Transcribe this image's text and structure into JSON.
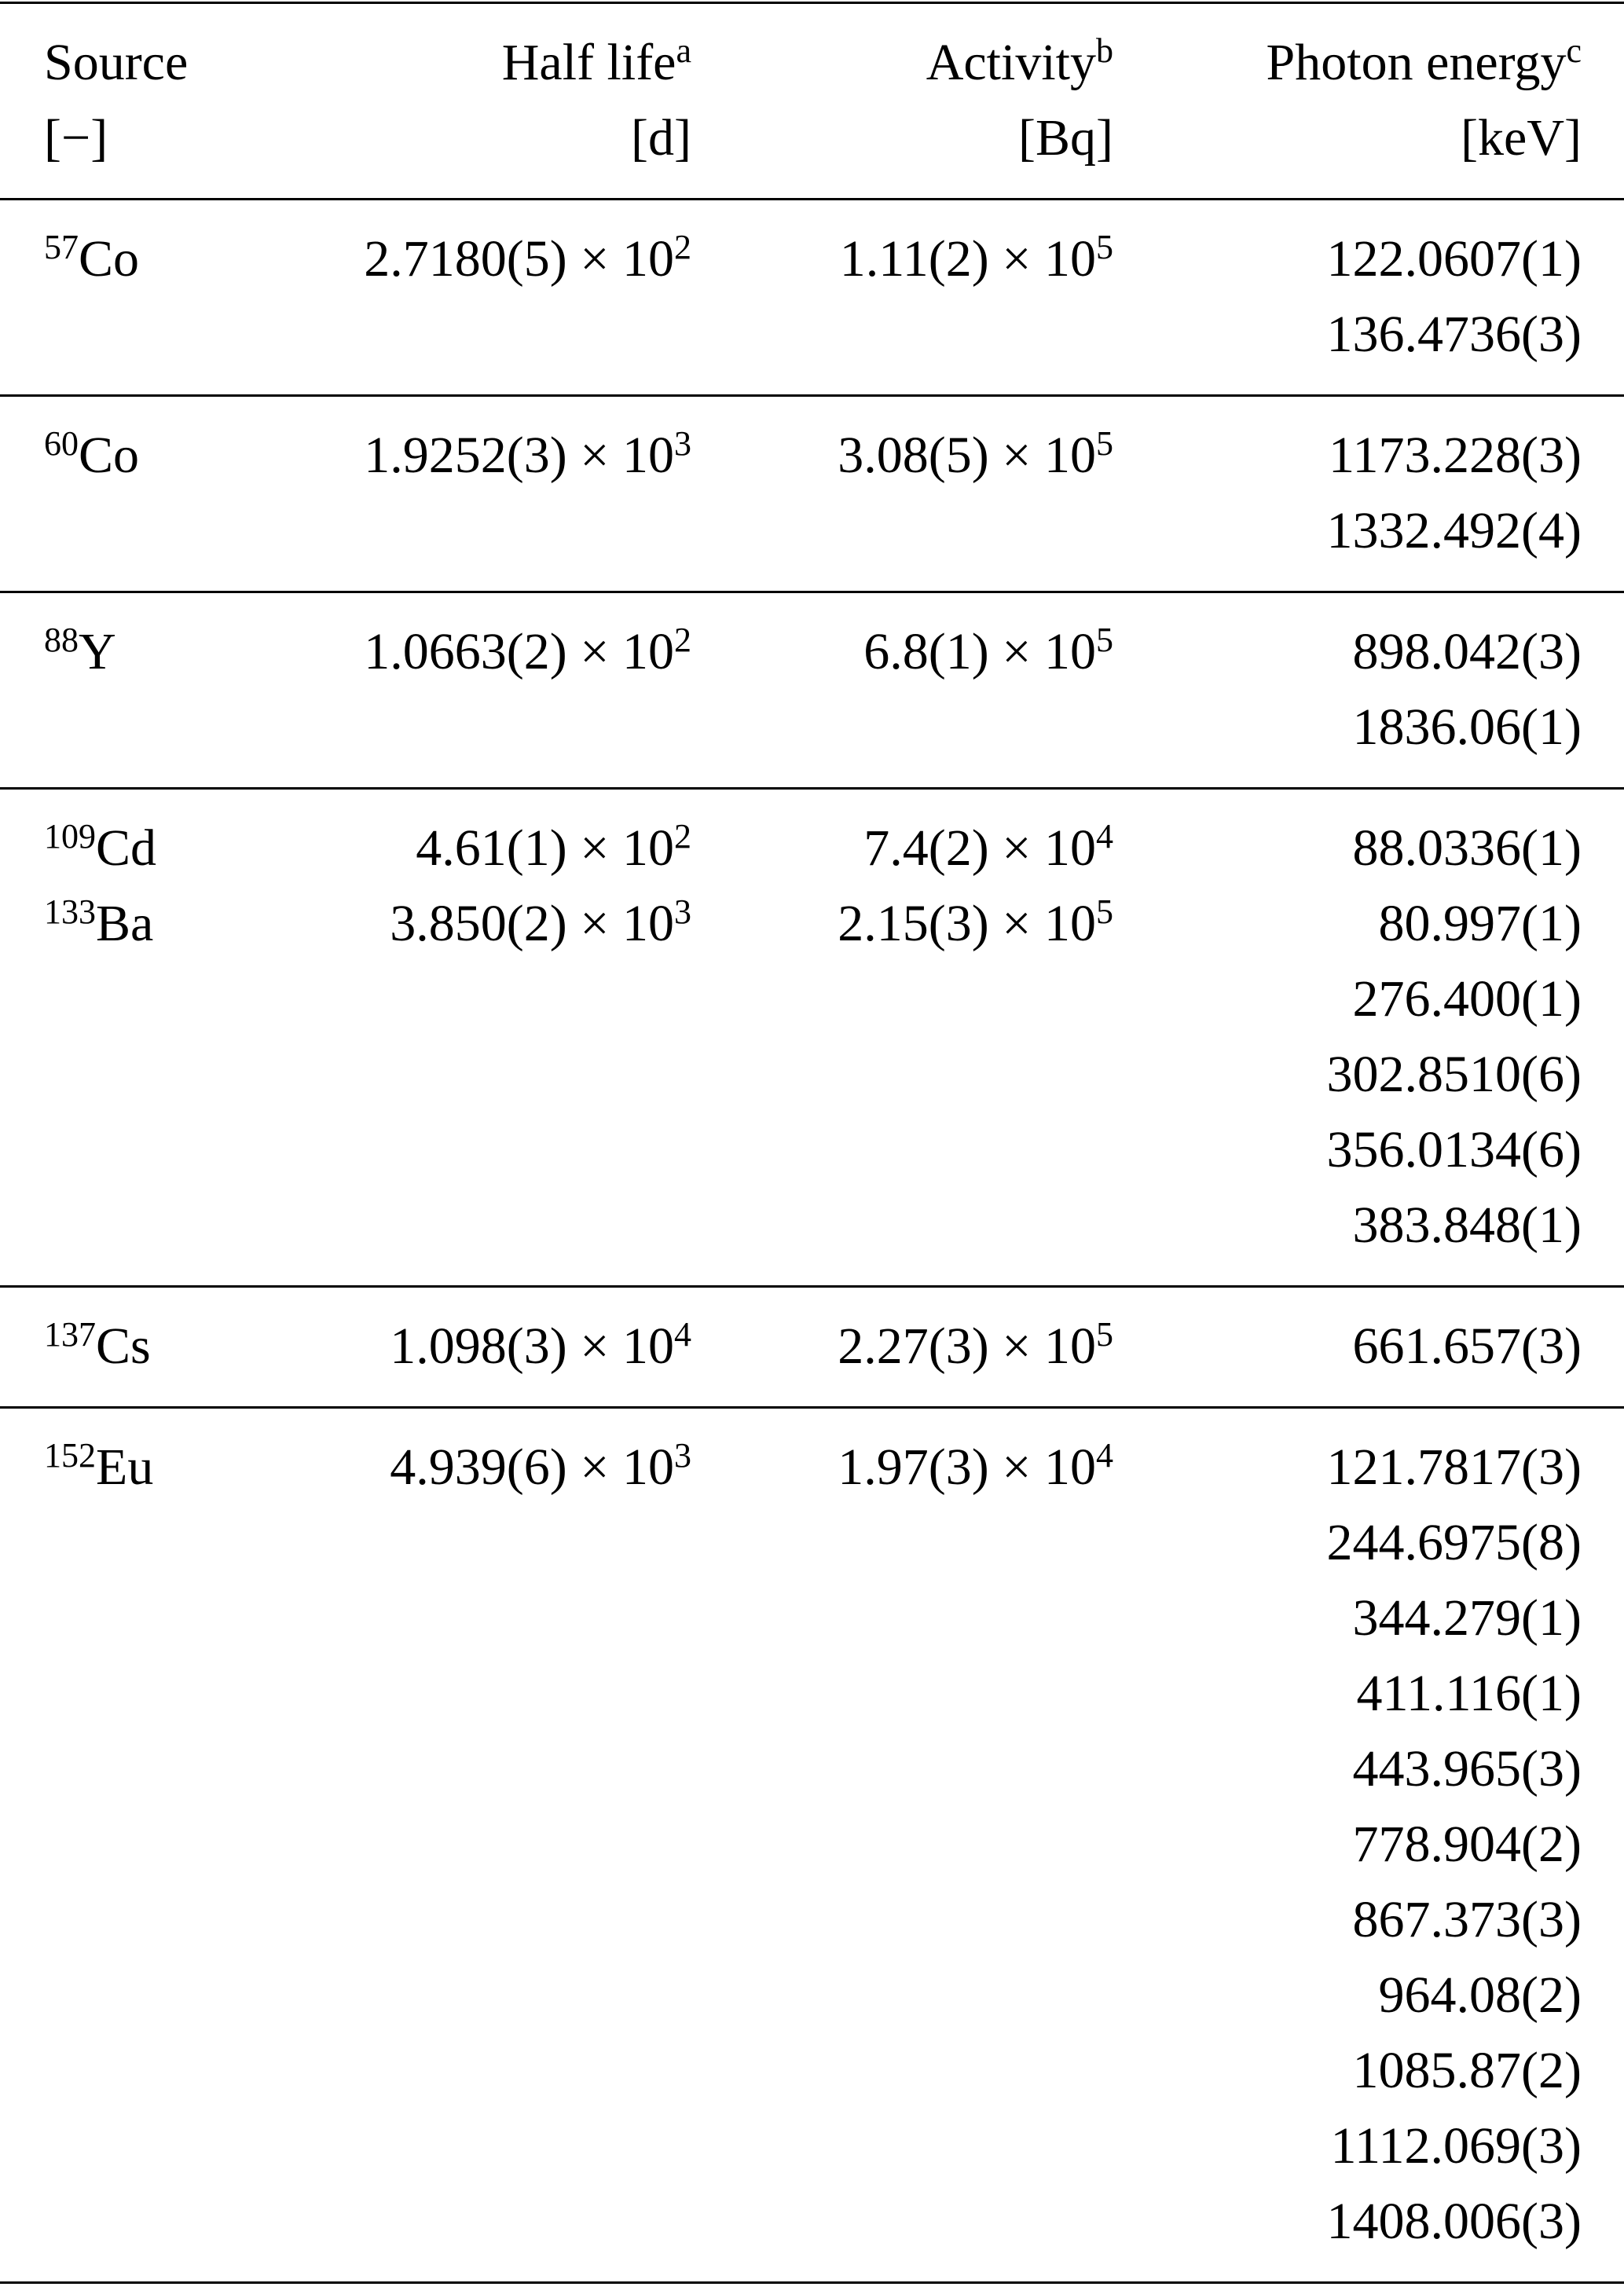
{
  "header": {
    "source": {
      "label": "Source",
      "unit": "[−]"
    },
    "half_life": {
      "label": "Half life",
      "note": "a",
      "unit": "[d]"
    },
    "activity": {
      "label": "Activity",
      "note": "b",
      "unit": "[Bq]"
    },
    "photon_energy": {
      "label": "Photon energy",
      "note": "c",
      "unit": "[keV]"
    }
  },
  "times": "× 10",
  "groups": [
    {
      "sources": [
        {
          "mass": "57",
          "el": "Co",
          "hl": "2.7180(5)",
          "hl_exp": "2",
          "act": "1.11(2)",
          "act_exp": "5"
        }
      ],
      "energies": [
        "122.0607(1)",
        "136.4736(3)"
      ]
    },
    {
      "sources": [
        {
          "mass": "60",
          "el": "Co",
          "hl": "1.9252(3)",
          "hl_exp": "3",
          "act": "3.08(5)",
          "act_exp": "5"
        }
      ],
      "energies": [
        "1173.228(3)",
        "1332.492(4)"
      ]
    },
    {
      "sources": [
        {
          "mass": "88",
          "el": "Y",
          "hl": "1.0663(2)",
          "hl_exp": "2",
          "act": "6.8(1)",
          "act_exp": "5"
        }
      ],
      "energies": [
        "898.042(3)",
        "1836.06(1)"
      ]
    },
    {
      "sources": [
        {
          "mass": "109",
          "el": "Cd",
          "hl": "4.61(1)",
          "hl_exp": "2",
          "act": "7.4(2)",
          "act_exp": "4"
        },
        {
          "mass": "133",
          "el": "Ba",
          "hl": "3.850(2)",
          "hl_exp": "3",
          "act": "2.15(3)",
          "act_exp": "5"
        }
      ],
      "energies": [
        "88.0336(1)",
        "80.997(1)",
        "276.400(1)",
        "302.8510(6)",
        "356.0134(6)",
        "383.848(1)"
      ]
    },
    {
      "sources": [
        {
          "mass": "137",
          "el": "Cs",
          "hl": "1.098(3)",
          "hl_exp": "4",
          "act": "2.27(3)",
          "act_exp": "5"
        }
      ],
      "energies": [
        "661.657(3)"
      ]
    },
    {
      "sources": [
        {
          "mass": "152",
          "el": "Eu",
          "hl": "4.939(6)",
          "hl_exp": "3",
          "act": "1.97(3)",
          "act_exp": "4"
        }
      ],
      "energies": [
        "121.7817(3)",
        "244.6975(8)",
        "344.279(1)",
        "411.116(1)",
        "443.965(3)",
        "778.904(2)",
        "867.373(3)",
        "964.08(2)",
        "1085.87(2)",
        "1112.069(3)",
        "1408.006(3)"
      ]
    }
  ]
}
